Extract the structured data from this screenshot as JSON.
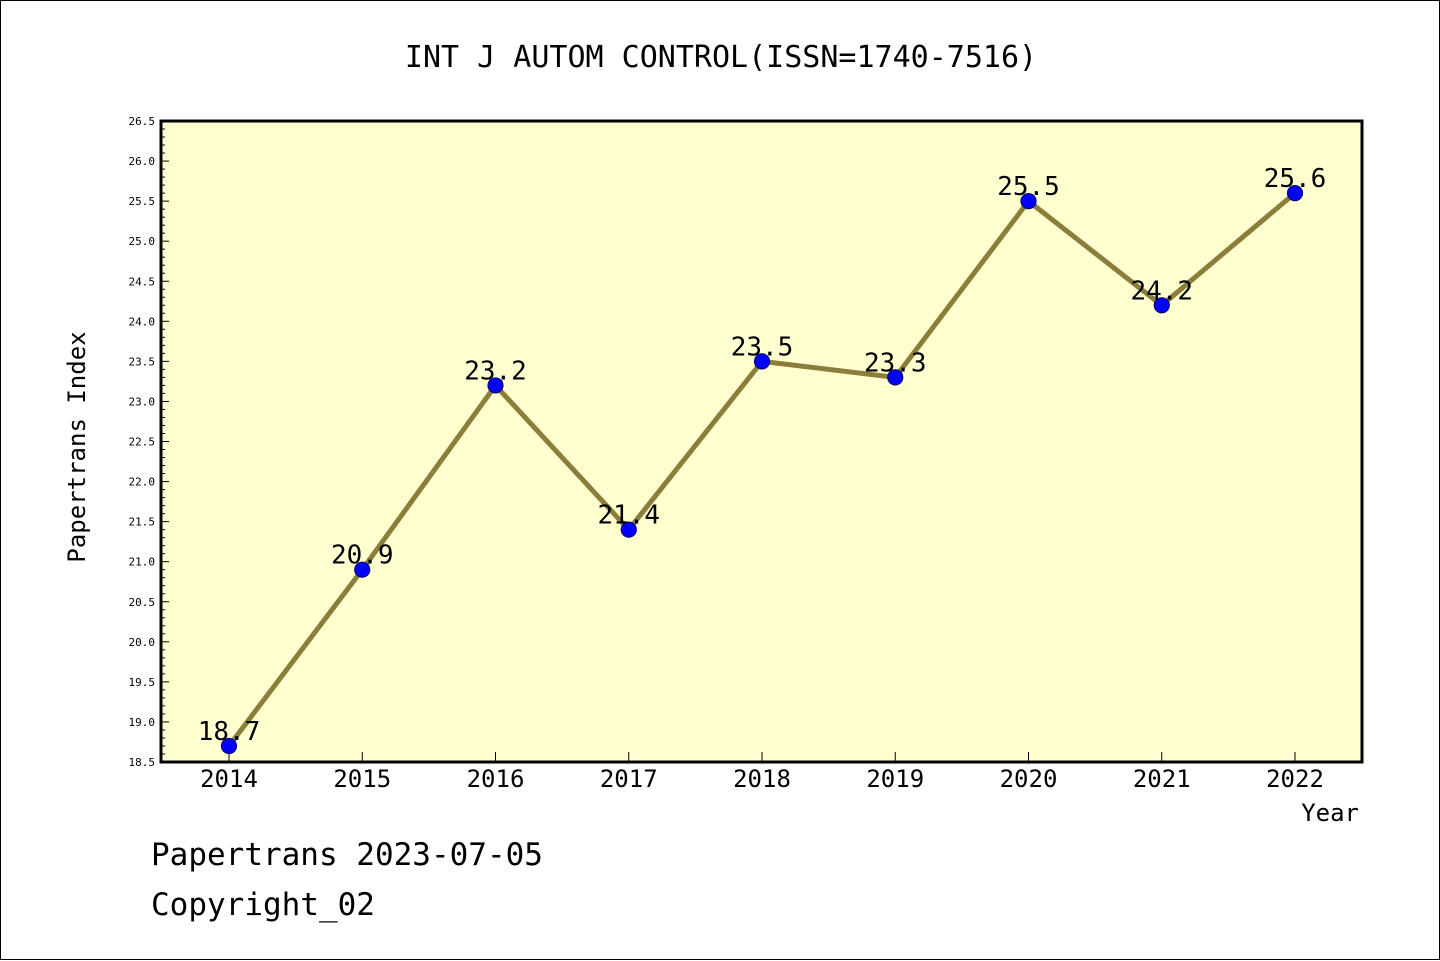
{
  "chart_data": {
    "type": "line",
    "title": "INT J AUTOM CONTROL(ISSN=1740-7516)",
    "xlabel": "Year",
    "ylabel": "Papertrans Index",
    "categories": [
      "2014",
      "2015",
      "2016",
      "2017",
      "2018",
      "2019",
      "2020",
      "2021",
      "2022"
    ],
    "series": [
      {
        "values": [
          18.7,
          20.9,
          23.2,
          21.4,
          23.5,
          23.3,
          25.5,
          24.2,
          25.6
        ]
      }
    ],
    "data_labels": [
      "18.7",
      "20.9",
      "23.2",
      "21.4",
      "23.5",
      "23.3",
      "25.5",
      "24.2",
      "25.6"
    ],
    "ylim": [
      18.5,
      26.5
    ],
    "yticks": [
      "18.5",
      "19.0",
      "19.5",
      "20.0",
      "20.5",
      "21.0",
      "21.5",
      "22.0",
      "22.5",
      "23.0",
      "23.5",
      "24.0",
      "24.5",
      "25.0",
      "25.5",
      "26.0",
      "26.5"
    ],
    "grid": false,
    "colors": {
      "plot_background": "#ffffd0",
      "line": "#8b7d3a",
      "marker": "#0000ff",
      "marker_edge": "#000080"
    }
  },
  "footer": {
    "line1": "Papertrans 2023-07-05",
    "line2": "Copyright_02"
  }
}
